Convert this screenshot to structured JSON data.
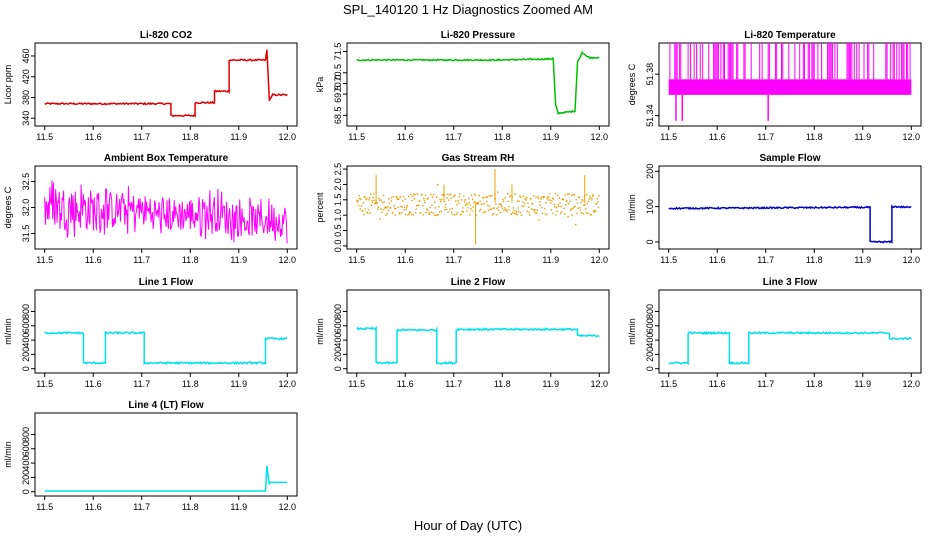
{
  "figure": {
    "title": "SPL_140120  1 Hz Diagnostics Zoomed AM",
    "xlabel": "Hour of Day (UTC)"
  },
  "chart_data": [
    {
      "type": "line",
      "title": "Li-820 CO2",
      "ylabel": "Licor ppm",
      "color": "#e00000",
      "xlim": [
        11.48,
        12.02
      ],
      "ylim": [
        325,
        485
      ],
      "xticks": [
        "11.5",
        "11.6",
        "11.7",
        "11.8",
        "11.9",
        "12.0"
      ],
      "yticks": [
        "340",
        "380",
        "420",
        "460"
      ],
      "noise": 1.5,
      "series": [
        {
          "x": [
            11.5,
            11.76,
            11.76,
            11.81,
            11.81,
            11.85,
            11.85,
            11.88,
            11.88,
            11.955,
            11.958,
            11.963,
            11.97,
            12.0
          ],
          "y": [
            368,
            368,
            345,
            345,
            370,
            370,
            392,
            392,
            452,
            452,
            472,
            375,
            385,
            385
          ]
        }
      ]
    },
    {
      "type": "line",
      "title": "Li-820 Pressure",
      "ylabel": "kPa",
      "color": "#00c000",
      "xlim": [
        11.48,
        12.02
      ],
      "ylim": [
        68.0,
        71.9
      ],
      "xticks": [
        "11.5",
        "11.6",
        "11.7",
        "11.8",
        "11.9",
        "12.0"
      ],
      "yticks": [
        "68.5",
        "69.5",
        "70.0",
        "70.5",
        "71.5"
      ],
      "noise": 0.03,
      "series": [
        {
          "x": [
            11.5,
            11.79,
            11.9,
            11.905,
            11.91,
            11.915,
            11.95,
            11.955,
            11.965,
            11.98,
            12.0
          ],
          "y": [
            71.1,
            71.1,
            71.15,
            71.2,
            69.0,
            68.6,
            68.7,
            71.0,
            71.45,
            71.2,
            71.2
          ]
        }
      ]
    },
    {
      "type": "line",
      "title": "Li-820 Temperature",
      "ylabel": "degrees C",
      "color": "#ff00ff",
      "xlim": [
        11.48,
        12.02
      ],
      "ylim": [
        51.33,
        51.41
      ],
      "xticks": [
        "11.5",
        "11.6",
        "11.7",
        "11.8",
        "11.9",
        "12.0"
      ],
      "yticks": [
        "51.34",
        "51.38"
      ],
      "band": [
        51.36,
        51.375,
        51.41
      ],
      "spikes_low": [
        [
          11.515,
          51.335
        ],
        [
          11.528,
          51.335
        ],
        [
          11.705,
          51.335
        ]
      ]
    },
    {
      "type": "line",
      "title": "Ambient Box Temperature",
      "ylabel": "degrees C",
      "color": "#ff00ff",
      "xlim": [
        11.48,
        12.02
      ],
      "ylim": [
        31.2,
        32.8
      ],
      "xticks": [
        "11.5",
        "11.6",
        "11.7",
        "11.8",
        "11.9",
        "12.0"
      ],
      "yticks": [
        "31.5",
        "32.0",
        "32.5"
      ],
      "band_series": {
        "x": [
          11.5,
          11.6,
          11.7,
          11.75,
          11.85,
          11.9,
          12.0
        ],
        "lo": [
          31.6,
          31.5,
          31.6,
          31.5,
          31.5,
          31.4,
          31.4
        ],
        "hi": [
          32.5,
          32.4,
          32.3,
          32.2,
          32.3,
          32.1,
          32.1
        ]
      }
    },
    {
      "type": "scatter",
      "title": "Gas Stream RH",
      "ylabel": "percent",
      "color": "#e8a000",
      "xlim": [
        11.48,
        12.02
      ],
      "ylim": [
        -0.1,
        2.6
      ],
      "xticks": [
        "11.5",
        "11.6",
        "11.7",
        "11.8",
        "11.9",
        "12.0"
      ],
      "yticks": [
        "0.0",
        "0.5",
        "1.0",
        "1.5",
        "2.0",
        "2.5"
      ],
      "band": [
        1.0,
        1.3,
        1.7
      ]
    },
    {
      "type": "line",
      "title": "Sample Flow",
      "ylabel": "ml/min",
      "color": "#0000d0",
      "xlim": [
        11.48,
        12.02
      ],
      "ylim": [
        -20,
        215
      ],
      "xticks": [
        "11.5",
        "11.6",
        "11.7",
        "11.8",
        "11.9",
        "12.0"
      ],
      "yticks": [
        "0",
        "100",
        "200"
      ],
      "noise": 2,
      "series": [
        {
          "x": [
            11.5,
            11.915,
            11.915,
            11.96,
            11.96,
            12.0
          ],
          "y": [
            95,
            98,
            0,
            0,
            100,
            98
          ]
        }
      ]
    },
    {
      "type": "line",
      "title": "Line 1 Flow",
      "ylabel": "ml/min",
      "color": "#00e0f0",
      "xlim": [
        11.48,
        12.02
      ],
      "ylim": [
        -60,
        1100
      ],
      "xticks": [
        "11.5",
        "11.6",
        "11.7",
        "11.8",
        "11.9",
        "12.0"
      ],
      "yticks": [
        "0",
        "200",
        "400",
        "600",
        "800"
      ],
      "noise": 12,
      "series": [
        {
          "x": [
            11.5,
            11.58,
            11.58,
            11.625,
            11.625,
            11.705,
            11.705,
            11.955,
            11.955,
            12.0
          ],
          "y": [
            500,
            500,
            80,
            80,
            500,
            500,
            80,
            80,
            420,
            420
          ]
        }
      ]
    },
    {
      "type": "line",
      "title": "Line 2 Flow",
      "ylabel": "ml/min",
      "color": "#00e0f0",
      "xlim": [
        11.48,
        12.02
      ],
      "ylim": [
        -60,
        1100
      ],
      "xticks": [
        "11.5",
        "11.6",
        "11.7",
        "11.8",
        "11.9",
        "12.0"
      ],
      "yticks": [
        "0",
        "200",
        "400",
        "600",
        "800"
      ],
      "noise": 12,
      "series": [
        {
          "x": [
            11.5,
            11.54,
            11.54,
            11.583,
            11.583,
            11.665,
            11.665,
            11.705,
            11.705,
            11.955,
            11.955,
            12.0
          ],
          "y": [
            560,
            560,
            80,
            80,
            540,
            540,
            80,
            80,
            550,
            550,
            460,
            460
          ]
        }
      ]
    },
    {
      "type": "line",
      "title": "Line 3 Flow",
      "ylabel": "ml/min",
      "color": "#00e0f0",
      "xlim": [
        11.48,
        12.02
      ],
      "ylim": [
        -60,
        1100
      ],
      "xticks": [
        "11.5",
        "11.6",
        "11.7",
        "11.8",
        "11.9",
        "12.0"
      ],
      "yticks": [
        "0",
        "200",
        "400",
        "600",
        "800"
      ],
      "noise": 12,
      "series": [
        {
          "x": [
            11.5,
            11.54,
            11.54,
            11.625,
            11.625,
            11.665,
            11.665,
            11.955,
            11.955,
            12.0
          ],
          "y": [
            80,
            80,
            500,
            500,
            80,
            80,
            500,
            500,
            420,
            420
          ]
        }
      ]
    },
    {
      "type": "line",
      "title": "Line 4 (LT) Flow",
      "ylabel": "ml/min",
      "color": "#00e0f0",
      "xlim": [
        11.48,
        12.02
      ],
      "ylim": [
        -60,
        1100
      ],
      "xticks": [
        "11.5",
        "11.6",
        "11.7",
        "11.8",
        "11.9",
        "12.0"
      ],
      "yticks": [
        "0",
        "200",
        "400",
        "600",
        "800"
      ],
      "noise": 0,
      "series": [
        {
          "x": [
            11.5,
            11.955,
            11.958,
            11.963,
            11.963,
            12.0
          ],
          "y": [
            10,
            10,
            360,
            100,
            130,
            130
          ]
        }
      ]
    }
  ]
}
